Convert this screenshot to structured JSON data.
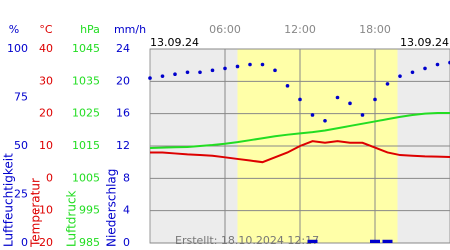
{
  "chart_data": {
    "type": "line",
    "dates": [
      "13.09.24",
      "13.09.24"
    ],
    "footer": "Erstellt: 18.10.2024 12:17",
    "xlim": [
      0,
      24
    ],
    "xticks": [
      {
        "value": 6,
        "label": "06:00"
      },
      {
        "value": 12,
        "label": "12:00"
      },
      {
        "value": 18,
        "label": "18:00"
      }
    ],
    "daylight": [
      7,
      19.8
    ],
    "x": [
      0,
      1,
      2,
      3,
      4,
      5,
      6,
      7,
      8,
      9,
      10,
      11,
      12,
      13,
      14,
      15,
      16,
      17,
      18,
      19,
      20,
      21,
      22,
      23,
      24
    ],
    "axes": [
      {
        "title": "Luftfeuchtigkeit",
        "unit": "%",
        "color": "#0000cc",
        "ylim": [
          0,
          100
        ],
        "yticks": [
          0,
          25,
          50,
          75,
          100
        ]
      },
      {
        "title": "Temperatur",
        "unit": "°C",
        "color": "#dd0000",
        "ylim": [
          -20,
          40
        ],
        "yticks": [
          -20,
          -10,
          0,
          10,
          20,
          30,
          40
        ],
        "grid": true
      },
      {
        "title": "Luftdruck",
        "unit": "hPa",
        "color": "#22dd22",
        "ylim": [
          985,
          1045
        ],
        "yticks": [
          985,
          995,
          1005,
          1015,
          1025,
          1035,
          1045
        ]
      },
      {
        "title": "Niederschlag",
        "unit": "mm/h",
        "color": "#0000cc",
        "ylim": [
          0,
          24
        ],
        "yticks": [
          0,
          4,
          8,
          12,
          16,
          20,
          24
        ]
      }
    ],
    "series": [
      {
        "axis": 0,
        "style": "dots",
        "color": "#0000cc",
        "values": [
          85,
          86,
          87,
          88,
          88,
          89,
          90,
          91,
          92,
          92,
          89,
          81,
          74,
          66,
          63,
          75,
          72,
          66,
          74,
          82,
          86,
          88,
          90,
          92,
          93
        ]
      },
      {
        "axis": 1,
        "style": "line",
        "color": "#dd0000",
        "values": [
          8,
          8,
          7.7,
          7.4,
          7.2,
          7,
          6.5,
          6,
          5.5,
          5,
          6.5,
          8,
          10,
          11.5,
          11,
          11.5,
          11,
          11,
          9.5,
          8,
          7.2,
          7,
          6.8,
          6.7,
          6.6
        ]
      },
      {
        "axis": 2,
        "style": "line",
        "color": "#22dd22",
        "values": [
          1014.4,
          1014.5,
          1014.6,
          1014.7,
          1015,
          1015.3,
          1015.7,
          1016.2,
          1016.8,
          1017.4,
          1018,
          1018.5,
          1018.9,
          1019.3,
          1019.8,
          1020.5,
          1021.2,
          1021.9,
          1022.6,
          1023.3,
          1024,
          1024.6,
          1025,
          1025.2,
          1025.2
        ]
      },
      {
        "axis": 3,
        "style": "bar",
        "color": "#0000cc",
        "values": [
          0,
          0,
          0,
          0,
          0,
          0,
          0,
          0,
          0,
          0,
          0,
          0,
          0,
          0.4,
          0,
          0,
          0,
          0,
          0.4,
          0.4,
          0,
          0,
          0,
          0,
          0
        ]
      }
    ]
  }
}
